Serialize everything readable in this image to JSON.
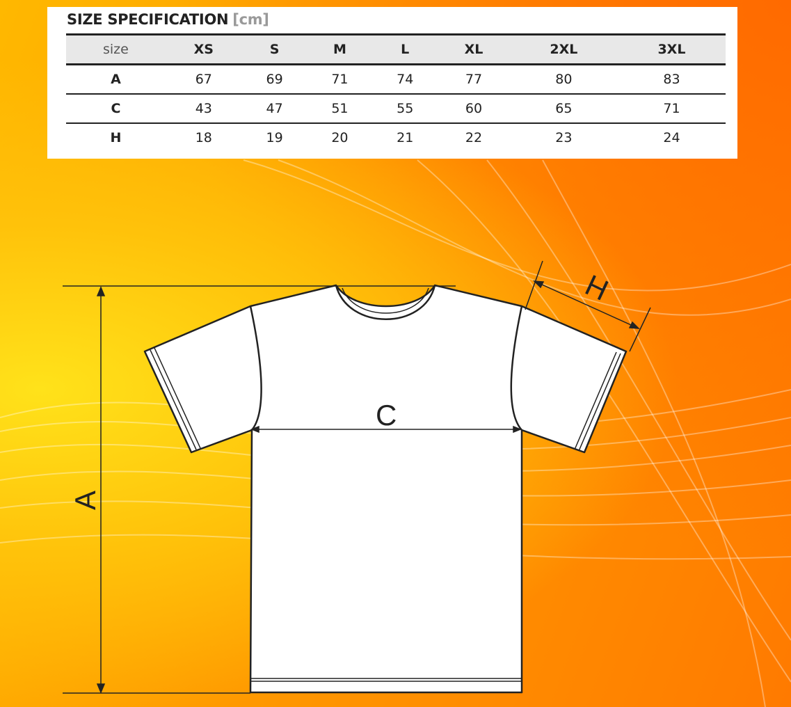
{
  "title": "SIZE SPECIFICATION",
  "unit": "[cm]",
  "table": {
    "header_label": "size",
    "sizes": [
      "XS",
      "S",
      "M",
      "L",
      "XL",
      "2XL",
      "3XL"
    ],
    "rows": [
      {
        "label": "A",
        "values": [
          "67",
          "69",
          "71",
          "74",
          "77",
          "80",
          "83"
        ]
      },
      {
        "label": "C",
        "values": [
          "43",
          "47",
          "51",
          "55",
          "60",
          "65",
          "71"
        ]
      },
      {
        "label": "H",
        "values": [
          "18",
          "19",
          "20",
          "21",
          "22",
          "23",
          "24"
        ]
      }
    ]
  },
  "diagram": {
    "label_a": "A",
    "label_c": "C",
    "label_h": "H"
  },
  "colors": {
    "background": "#ff9a00",
    "accent_yellow": "#ffe21a",
    "panel": "#ffffff"
  }
}
